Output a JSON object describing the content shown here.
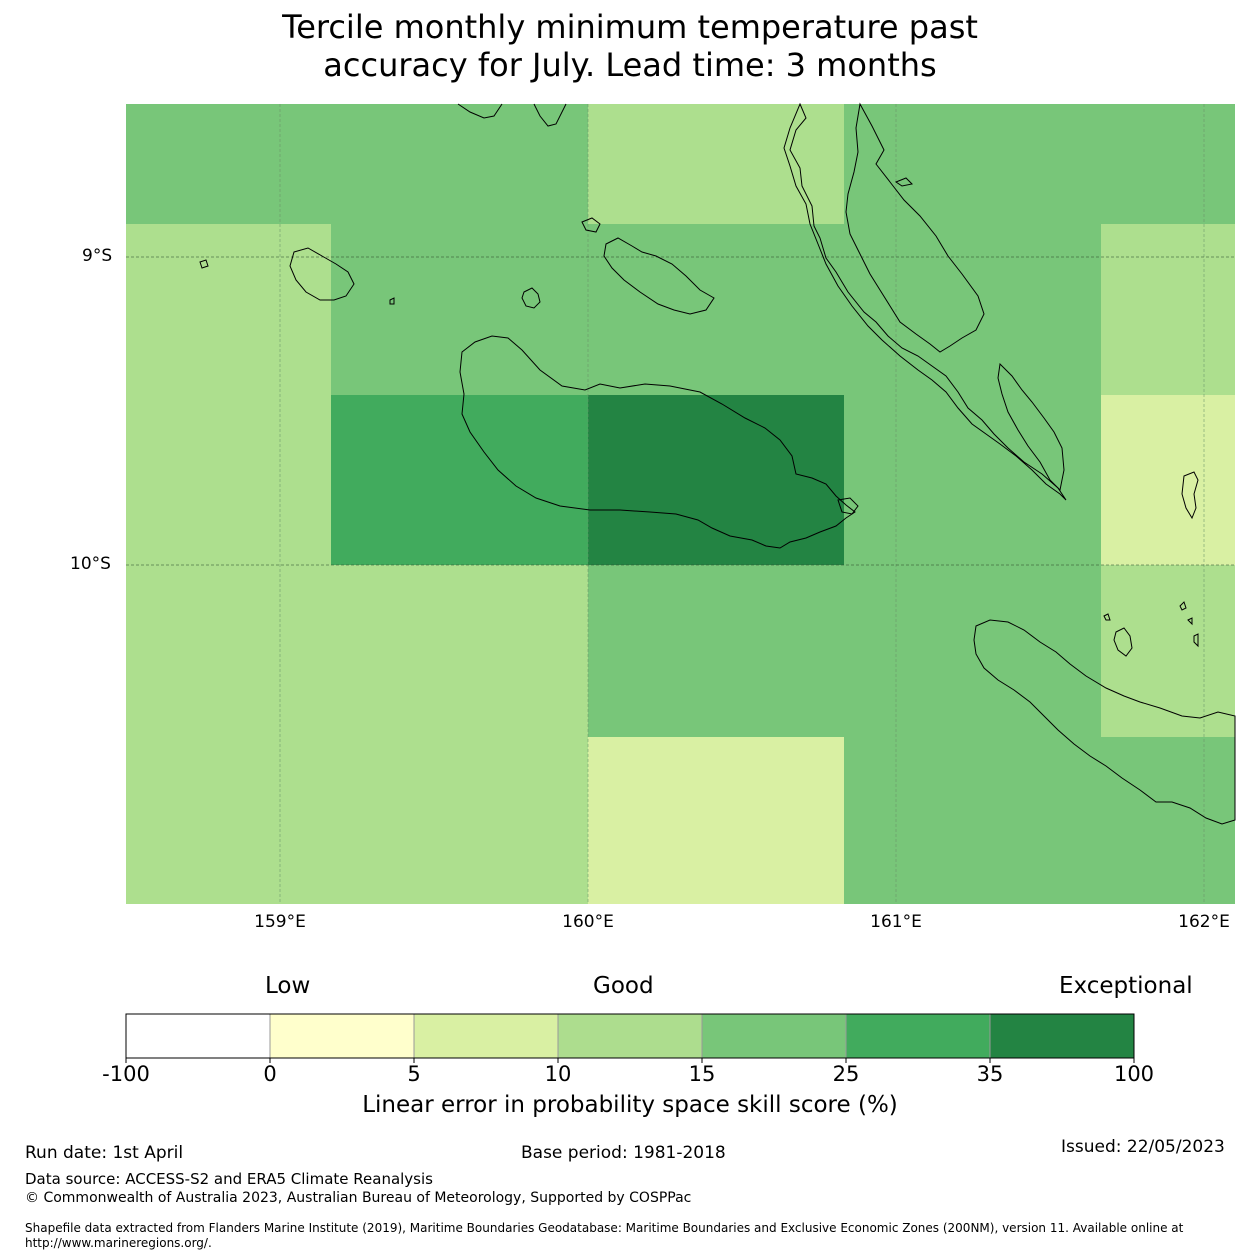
{
  "title": {
    "line1": "Tercile monthly minimum temperature past",
    "line2": "accuracy for July. Lead time: 3 months"
  },
  "map": {
    "lat_labels": [
      "9°S",
      "10°S"
    ],
    "lon_labels": [
      "159°E",
      "160°E",
      "161°E",
      "162°E"
    ],
    "colors": {
      "c10_15": "#addf8e",
      "c15_25": "#78c679",
      "c25_35": "#41ab5d",
      "c35_100": "#238443",
      "c5_10": "#d9f0a3"
    }
  },
  "colorbar": {
    "categories": [
      "Low",
      "Good",
      "Exceptional"
    ],
    "ticks": [
      "-100",
      "0",
      "5",
      "10",
      "15",
      "25",
      "35",
      "100"
    ],
    "colors": [
      "#ffffff",
      "#ffffcc",
      "#d9f0a3",
      "#addd8e",
      "#78c679",
      "#41ab5d",
      "#238443"
    ],
    "title": "Linear error in probability space skill score (%)"
  },
  "footer": {
    "run_date": "Run date: 1st April",
    "base_period": "Base period: 1981-2018",
    "issued": "Issued: 22/05/2023",
    "data_source": "Data source: ACCESS-S2 and ERA5 Climate Reanalysis",
    "copyright": "© Commonwealth of Australia 2023, Australian Bureau of Meteorology, Supported by COSPPac",
    "shapefile_line1": "Shapefile data extracted from Flanders Marine Institute (2019), Maritime Boundaries Geodatabase: Maritime Boundaries and Exclusive Economic Zones (200NM), version 11. Available online at",
    "shapefile_line2": "http://www.marineregions.org/."
  }
}
